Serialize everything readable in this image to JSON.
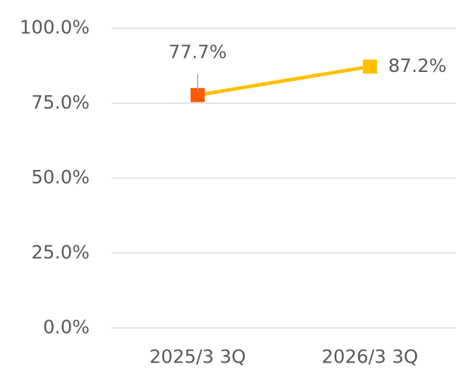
{
  "chart_data": {
    "type": "line",
    "categories": [
      "2025/3 3Q",
      "2026/3 3Q"
    ],
    "values": [
      77.7,
      87.2
    ],
    "value_labels": [
      "77.7%",
      "87.2%"
    ],
    "color": "#FFC000",
    "point_colors": [
      "#FF5A00",
      "#FFC000"
    ],
    "ylim": [
      0,
      100
    ],
    "yticks": [
      {
        "value": 0,
        "label": "0.0%"
      },
      {
        "value": 25,
        "label": "25.0%"
      },
      {
        "value": 50,
        "label": "50.0%"
      },
      {
        "value": 75,
        "label": "75.0%"
      },
      {
        "value": 100,
        "label": "100.0%"
      }
    ],
    "grid": true
  }
}
